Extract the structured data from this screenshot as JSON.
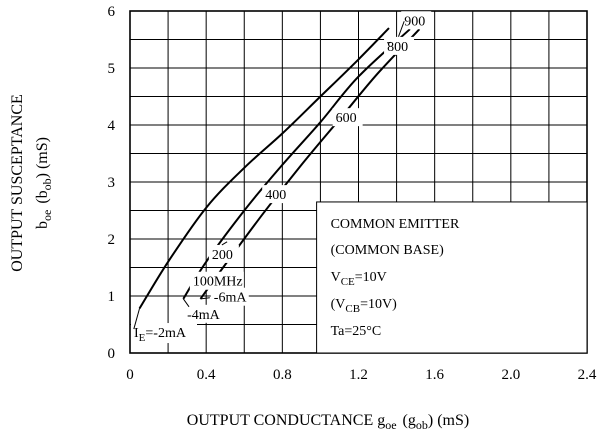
{
  "chart_data": {
    "type": "line",
    "xlabel": {
      "main": "OUTPUT CONDUCTANCE g",
      "sub1": "oe",
      "mid": "(g",
      "sub2": "ob",
      "end": ")  (mS)"
    },
    "ylabel": {
      "line1": "OUTPUT SUSCEPTANCE",
      "b": "b",
      "sub1": "oe",
      "mid": "(b",
      "sub2": "ob",
      "end": ")  (mS)"
    },
    "xlim": [
      0,
      2.4
    ],
    "ylim": [
      0,
      6
    ],
    "grid": true,
    "x_ticks": [
      "0",
      "0.4",
      "0.8",
      "1.2",
      "1.6",
      "2.0",
      "2.4"
    ],
    "y_ticks": [
      "0",
      "1",
      "2",
      "3",
      "4",
      "5",
      "6"
    ],
    "series": [
      {
        "name": "IE=-2mA",
        "points": [
          [
            0.05,
            0.78
          ],
          [
            0.2,
            1.6
          ],
          [
            0.4,
            2.55
          ],
          [
            0.6,
            3.25
          ],
          [
            0.8,
            3.85
          ],
          [
            1.0,
            4.5
          ],
          [
            1.2,
            5.15
          ],
          [
            1.36,
            5.7
          ]
        ]
      },
      {
        "name": "IE=-4mA",
        "points": [
          [
            0.28,
            0.95
          ],
          [
            0.4,
            1.6
          ],
          [
            0.6,
            2.5
          ],
          [
            0.8,
            3.3
          ],
          [
            1.0,
            4.05
          ],
          [
            1.2,
            4.85
          ],
          [
            1.47,
            5.68
          ]
        ]
      },
      {
        "name": "IE=-6mA",
        "points": [
          [
            0.37,
            0.95
          ],
          [
            0.5,
            1.55
          ],
          [
            0.7,
            2.45
          ],
          [
            0.9,
            3.3
          ],
          [
            1.1,
            4.1
          ],
          [
            1.3,
            4.9
          ],
          [
            1.52,
            5.68
          ]
        ]
      }
    ],
    "frequency_labels": [
      {
        "text": "100MHz",
        "x": 0.33,
        "y": 1.18
      },
      {
        "text": "200",
        "x": 0.43,
        "y": 1.65
      },
      {
        "text": "400",
        "x": 0.71,
        "y": 2.7
      },
      {
        "text": "600",
        "x": 1.08,
        "y": 4.05
      },
      {
        "text": "800",
        "x": 1.35,
        "y": 5.3
      },
      {
        "text": "900",
        "x": 1.44,
        "y": 5.75
      }
    ],
    "current_labels": [
      {
        "text_main": "-6mA",
        "x": 0.44,
        "y": 0.9
      },
      {
        "text_main": "-4mA",
        "x": 0.3,
        "y": 0.6
      },
      {
        "text_prefix": "I",
        "text_sub": "E",
        "text_main": "=-2mA",
        "x": 0.0,
        "y": 0.28
      }
    ],
    "legend_box": {
      "line1": "COMMON EMITTER",
      "line2": "(COMMON BASE)",
      "line3_main": "V",
      "line3_sub": "CE",
      "line3_end": "=10V",
      "line4_main": "(V",
      "line4_sub": "CB",
      "line4_end": "=10V)",
      "line5": "Ta=25°C"
    }
  }
}
